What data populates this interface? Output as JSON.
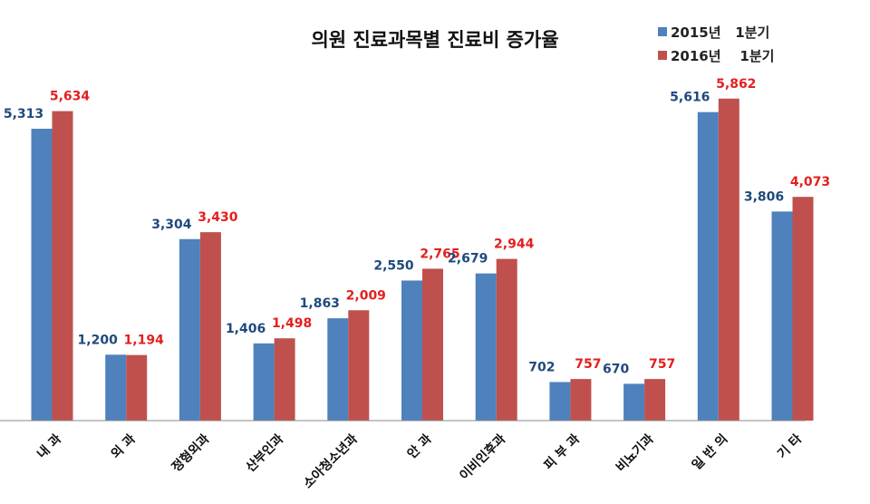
{
  "chart_data": {
    "type": "bar",
    "title": "의원 진료과목별 진료비 증가율",
    "categories": [
      "내 과",
      "외 과",
      "정형외과",
      "산부인과",
      "소아청소년과",
      "안 과",
      "이비인후과",
      "피 부 과",
      "비뇨기과",
      "일 반 의",
      "기 타"
    ],
    "series": [
      {
        "name": "2015년   1분기",
        "color": "#4F81BD",
        "label_color": "#1F497D",
        "values": [
          5313,
          1200,
          3304,
          1406,
          1863,
          2550,
          2679,
          702,
          670,
          5616,
          3806
        ],
        "labels": [
          "5,313",
          "1,200",
          "3,304",
          "1,406",
          "1,863",
          "2,550",
          "2,679",
          "702",
          "670",
          "5,616",
          "3,806"
        ]
      },
      {
        "name": "2016년    1분기",
        "color": "#C0504D",
        "label_color": "#E41E1E",
        "values": [
          5634,
          1194,
          3430,
          1498,
          2009,
          2765,
          2944,
          757,
          757,
          5862,
          4073
        ],
        "labels": [
          "5,634",
          "1,194",
          "3,430",
          "1,498",
          "2,009",
          "2,765",
          "2,944",
          "757",
          "757",
          "5,862",
          "4,073"
        ]
      }
    ],
    "legend_position": "top-right",
    "grid": false,
    "ylim": [
      0,
      6000
    ]
  }
}
